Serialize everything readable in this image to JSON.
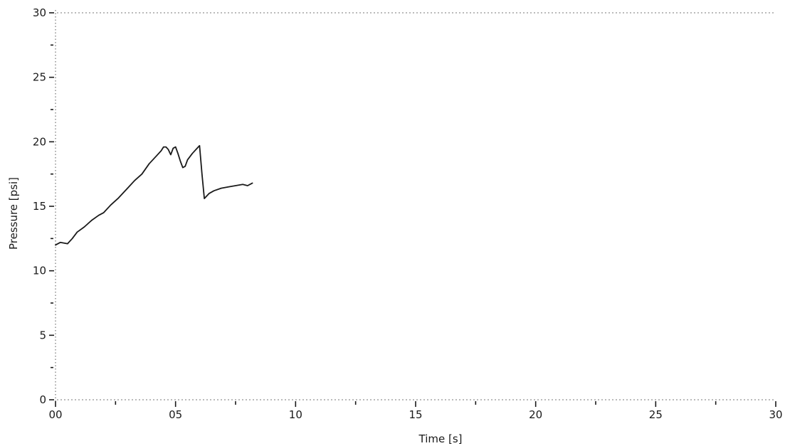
{
  "chart_data": {
    "type": "line",
    "title": "",
    "xlabel": "Time [s]",
    "ylabel": "Pressure [psi]",
    "xlim": [
      0,
      30
    ],
    "ylim": [
      0,
      30
    ],
    "x_ticks": [
      {
        "value": 0,
        "label": "00"
      },
      {
        "value": 5,
        "label": "05"
      },
      {
        "value": 10,
        "label": "10"
      },
      {
        "value": 15,
        "label": "15"
      },
      {
        "value": 20,
        "label": "20"
      },
      {
        "value": 25,
        "label": "25"
      },
      {
        "value": 30,
        "label": "30"
      }
    ],
    "x_minor_ticks": [
      2.5,
      7.5,
      12.5,
      17.5,
      22.5,
      27.5
    ],
    "y_ticks": [
      {
        "value": 0,
        "label": "0"
      },
      {
        "value": 5,
        "label": "5"
      },
      {
        "value": 10,
        "label": "10"
      },
      {
        "value": 15,
        "label": "15"
      },
      {
        "value": 20,
        "label": "20"
      },
      {
        "value": 25,
        "label": "25"
      },
      {
        "value": 30,
        "label": "30"
      }
    ],
    "y_minor_ticks": [
      2.5,
      7.5,
      12.5,
      17.5,
      22.5,
      27.5
    ],
    "grid": false,
    "reference_lines": [
      {
        "y": 0,
        "style": "dotted"
      },
      {
        "y": 30,
        "style": "dotted"
      }
    ],
    "series": [
      {
        "color": "#1a1a1a",
        "x": [
          0.0,
          0.2,
          0.5,
          0.7,
          0.9,
          1.2,
          1.5,
          1.8,
          2.0,
          2.3,
          2.6,
          3.0,
          3.3,
          3.6,
          3.9,
          4.2,
          4.4,
          4.5,
          4.6,
          4.7,
          4.8,
          4.9,
          5.0,
          5.1,
          5.2,
          5.3,
          5.4,
          5.5,
          5.7,
          5.9,
          6.0,
          6.1,
          6.2,
          6.4,
          6.6,
          6.9,
          7.2,
          7.5,
          7.8,
          8.0,
          8.2
        ],
        "y": [
          12.0,
          12.2,
          12.1,
          12.5,
          13.0,
          13.4,
          13.9,
          14.3,
          14.5,
          15.1,
          15.6,
          16.4,
          17.0,
          17.5,
          18.3,
          18.9,
          19.3,
          19.6,
          19.6,
          19.4,
          19.0,
          19.5,
          19.6,
          19.1,
          18.5,
          18.0,
          18.1,
          18.6,
          19.1,
          19.5,
          19.7,
          17.5,
          15.6,
          16.0,
          16.2,
          16.4,
          16.5,
          16.6,
          16.7,
          16.6,
          16.8
        ]
      }
    ]
  }
}
